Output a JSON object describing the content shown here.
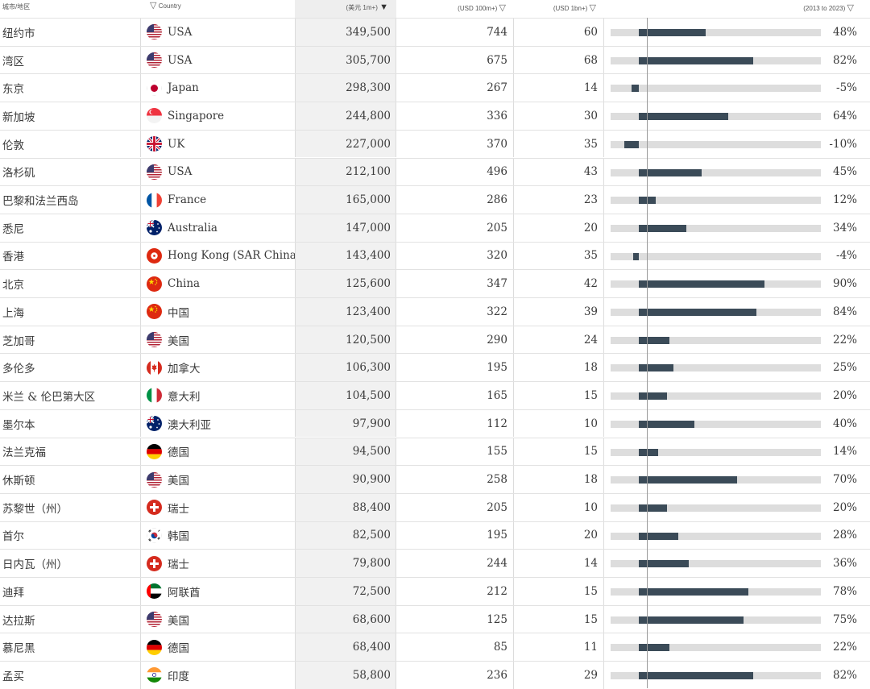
{
  "header": {
    "city": "城市/地区",
    "country": "Country",
    "hnwi": "(美元 1m+)",
    "centi": "(USD 100m+)",
    "billion": "(USD 1bn+)",
    "growth": "(2013 to 2023)"
  },
  "colors": {
    "bar": "#3b4b58",
    "bar_track": "#dddddd",
    "sorted_column": "#f1f1f1"
  },
  "chart_data": {
    "type": "table",
    "columns": [
      "城市/地区",
      "Country",
      "(美元 1m+)",
      "(USD 100m+)",
      "(USD 1bn+)",
      "(2013 to 2023)"
    ],
    "sort": {
      "column": "(美元 1m+)",
      "order": "descending"
    },
    "growth_axis": {
      "min": -20,
      "max": 130
    },
    "rows": [
      {
        "city": "纽约市",
        "country": "USA",
        "flag": "us",
        "hnwi": "349,500",
        "centi": "744",
        "bil": "60",
        "pct_label": "48%",
        "pct": 48
      },
      {
        "city": "湾区",
        "country": "USA",
        "flag": "us",
        "hnwi": "305,700",
        "centi": "675",
        "bil": "68",
        "pct_label": "82%",
        "pct": 82
      },
      {
        "city": "东京",
        "country": "Japan",
        "flag": "jp",
        "hnwi": "298,300",
        "centi": "267",
        "bil": "14",
        "pct_label": "-5%",
        "pct": -5
      },
      {
        "city": "新加坡",
        "country": "Singapore",
        "flag": "sg",
        "hnwi": "244,800",
        "centi": "336",
        "bil": "30",
        "pct_label": "64%",
        "pct": 64
      },
      {
        "city": "伦敦",
        "country": "UK",
        "flag": "uk",
        "hnwi": "227,000",
        "centi": "370",
        "bil": "35",
        "pct_label": "-10%",
        "pct": -10
      },
      {
        "city": "洛杉矶",
        "country": "USA",
        "flag": "us",
        "hnwi": "212,100",
        "centi": "496",
        "bil": "43",
        "pct_label": "45%",
        "pct": 45
      },
      {
        "city": "巴黎和法兰西岛",
        "country": "France",
        "flag": "fr",
        "hnwi": "165,000",
        "centi": "286",
        "bil": "23",
        "pct_label": "12%",
        "pct": 12
      },
      {
        "city": "悉尼",
        "country": "Australia",
        "flag": "au",
        "hnwi": "147,000",
        "centi": "205",
        "bil": "20",
        "pct_label": "34%",
        "pct": 34
      },
      {
        "city": "香港",
        "country": "Hong Kong (SAR China)",
        "flag": "hk",
        "hnwi": "143,400",
        "centi": "320",
        "bil": "35",
        "pct_label": "-4%",
        "pct": -4
      },
      {
        "city": "北京",
        "country": "China",
        "flag": "cn",
        "hnwi": "125,600",
        "centi": "347",
        "bil": "42",
        "pct_label": "90%",
        "pct": 90
      },
      {
        "city": "上海",
        "country": "中国",
        "flag": "cn",
        "hnwi": "123,400",
        "centi": "322",
        "bil": "39",
        "pct_label": "84%",
        "pct": 84
      },
      {
        "city": "芝加哥",
        "country": "美国",
        "flag": "us",
        "hnwi": "120,500",
        "centi": "290",
        "bil": "24",
        "pct_label": "22%",
        "pct": 22
      },
      {
        "city": "多伦多",
        "country": "加拿大",
        "flag": "ca",
        "hnwi": "106,300",
        "centi": "195",
        "bil": "18",
        "pct_label": "25%",
        "pct": 25
      },
      {
        "city": "米兰 & 伦巴第大区",
        "country": "意大利",
        "flag": "it",
        "hnwi": "104,500",
        "centi": "165",
        "bil": "15",
        "pct_label": "20%",
        "pct": 20
      },
      {
        "city": "墨尔本",
        "country": "澳大利亚",
        "flag": "au",
        "hnwi": "97,900",
        "centi": "112",
        "bil": "10",
        "pct_label": "40%",
        "pct": 40
      },
      {
        "city": "法兰克福",
        "country": "德国",
        "flag": "de",
        "hnwi": "94,500",
        "centi": "155",
        "bil": "15",
        "pct_label": "14%",
        "pct": 14
      },
      {
        "city": "休斯顿",
        "country": "美国",
        "flag": "us",
        "hnwi": "90,900",
        "centi": "258",
        "bil": "18",
        "pct_label": "70%",
        "pct": 70
      },
      {
        "city": "苏黎世（州）",
        "country": "瑞士",
        "flag": "ch",
        "hnwi": "88,400",
        "centi": "205",
        "bil": "10",
        "pct_label": "20%",
        "pct": 20
      },
      {
        "city": "首尔",
        "country": "韩国",
        "flag": "kr",
        "hnwi": "82,500",
        "centi": "195",
        "bil": "20",
        "pct_label": "28%",
        "pct": 28
      },
      {
        "city": "日内瓦（州）",
        "country": "瑞士",
        "flag": "ch",
        "hnwi": "79,800",
        "centi": "244",
        "bil": "14",
        "pct_label": "36%",
        "pct": 36
      },
      {
        "city": "迪拜",
        "country": "阿联酋",
        "flag": "ae",
        "hnwi": "72,500",
        "centi": "212",
        "bil": "15",
        "pct_label": "78%",
        "pct": 78
      },
      {
        "city": "达拉斯",
        "country": "美国",
        "flag": "us",
        "hnwi": "68,600",
        "centi": "125",
        "bil": "15",
        "pct_label": "75%",
        "pct": 75
      },
      {
        "city": "慕尼黑",
        "country": "德国",
        "flag": "de",
        "hnwi": "68,400",
        "centi": "85",
        "bil": "11",
        "pct_label": "22%",
        "pct": 22
      },
      {
        "city": "孟买",
        "country": "印度",
        "flag": "in",
        "hnwi": "58,800",
        "centi": "236",
        "bil": "29",
        "pct_label": "82%",
        "pct": 82
      }
    ]
  }
}
